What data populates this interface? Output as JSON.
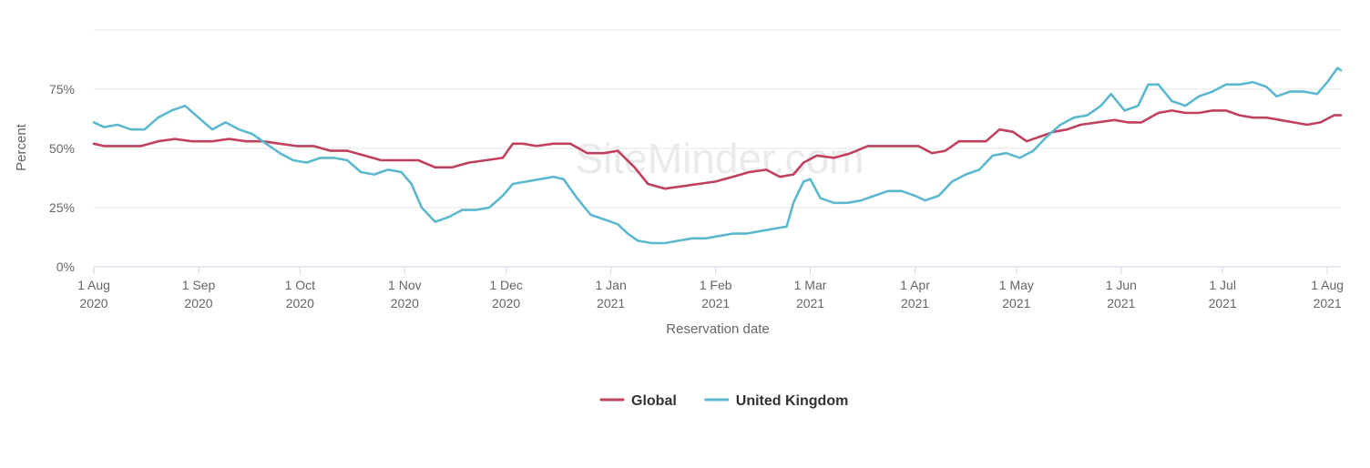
{
  "watermark": "SiteMinder.com",
  "chart_data": {
    "type": "line",
    "title": "",
    "xlabel": "Reservation date",
    "ylabel": "Percent",
    "ylim": [
      0,
      100
    ],
    "y_ticks": [
      {
        "value": 0,
        "label": "0%"
      },
      {
        "value": 25,
        "label": "25%"
      },
      {
        "value": 50,
        "label": "50%"
      },
      {
        "value": 75,
        "label": "75%"
      },
      {
        "value": 100,
        "label": ""
      }
    ],
    "xlim": [
      "2020-08-01",
      "2021-08-05"
    ],
    "x_ticks": [
      {
        "date": "2020-08-01",
        "line1": "1 Aug",
        "line2": "2020"
      },
      {
        "date": "2020-09-01",
        "line1": "1 Sep",
        "line2": "2020"
      },
      {
        "date": "2020-10-01",
        "line1": "1 Oct",
        "line2": "2020"
      },
      {
        "date": "2020-11-01",
        "line1": "1 Nov",
        "line2": "2020"
      },
      {
        "date": "2020-12-01",
        "line1": "1 Dec",
        "line2": "2020"
      },
      {
        "date": "2021-01-01",
        "line1": "1 Jan",
        "line2": "2021"
      },
      {
        "date": "2021-02-01",
        "line1": "1 Feb",
        "line2": "2021"
      },
      {
        "date": "2021-03-01",
        "line1": "1 Mar",
        "line2": "2021"
      },
      {
        "date": "2021-04-01",
        "line1": "1 Apr",
        "line2": "2021"
      },
      {
        "date": "2021-05-01",
        "line1": "1 May",
        "line2": "2021"
      },
      {
        "date": "2021-06-01",
        "line1": "1 Jun",
        "line2": "2021"
      },
      {
        "date": "2021-07-01",
        "line1": "1 Jul",
        "line2": "2021"
      },
      {
        "date": "2021-08-01",
        "line1": "1 Aug",
        "line2": "2021"
      }
    ],
    "grid": true,
    "legend_position": "bottom-center",
    "series": [
      {
        "name": "Global",
        "color": "#c0405e",
        "points": [
          [
            "2020-08-01",
            52
          ],
          [
            "2020-08-04",
            51
          ],
          [
            "2020-08-10",
            51
          ],
          [
            "2020-08-15",
            51
          ],
          [
            "2020-08-20",
            53
          ],
          [
            "2020-08-25",
            54
          ],
          [
            "2020-08-30",
            53
          ],
          [
            "2020-09-05",
            53
          ],
          [
            "2020-09-10",
            54
          ],
          [
            "2020-09-15",
            53
          ],
          [
            "2020-09-20",
            53
          ],
          [
            "2020-09-25",
            52
          ],
          [
            "2020-09-30",
            51
          ],
          [
            "2020-10-05",
            51
          ],
          [
            "2020-10-10",
            49
          ],
          [
            "2020-10-15",
            49
          ],
          [
            "2020-10-20",
            47
          ],
          [
            "2020-10-25",
            45
          ],
          [
            "2020-10-30",
            45
          ],
          [
            "2020-11-05",
            45
          ],
          [
            "2020-11-10",
            42
          ],
          [
            "2020-11-15",
            42
          ],
          [
            "2020-11-20",
            44
          ],
          [
            "2020-11-25",
            45
          ],
          [
            "2020-11-30",
            46
          ],
          [
            "2020-12-03",
            52
          ],
          [
            "2020-12-06",
            52
          ],
          [
            "2020-12-10",
            51
          ],
          [
            "2020-12-15",
            52
          ],
          [
            "2020-12-20",
            52
          ],
          [
            "2020-12-25",
            48
          ],
          [
            "2020-12-30",
            48
          ],
          [
            "2021-01-03",
            49
          ],
          [
            "2021-01-08",
            42
          ],
          [
            "2021-01-12",
            35
          ],
          [
            "2021-01-17",
            33
          ],
          [
            "2021-01-22",
            34
          ],
          [
            "2021-01-27",
            35
          ],
          [
            "2021-02-01",
            36
          ],
          [
            "2021-02-06",
            38
          ],
          [
            "2021-02-11",
            40
          ],
          [
            "2021-02-16",
            41
          ],
          [
            "2021-02-20",
            38
          ],
          [
            "2021-02-24",
            39
          ],
          [
            "2021-02-27",
            44
          ],
          [
            "2021-03-03",
            47
          ],
          [
            "2021-03-08",
            46
          ],
          [
            "2021-03-13",
            48
          ],
          [
            "2021-03-18",
            51
          ],
          [
            "2021-03-23",
            51
          ],
          [
            "2021-03-28",
            51
          ],
          [
            "2021-04-02",
            51
          ],
          [
            "2021-04-06",
            48
          ],
          [
            "2021-04-10",
            49
          ],
          [
            "2021-04-14",
            53
          ],
          [
            "2021-04-18",
            53
          ],
          [
            "2021-04-22",
            53
          ],
          [
            "2021-04-26",
            58
          ],
          [
            "2021-04-30",
            57
          ],
          [
            "2021-05-04",
            53
          ],
          [
            "2021-05-08",
            55
          ],
          [
            "2021-05-12",
            57
          ],
          [
            "2021-05-16",
            58
          ],
          [
            "2021-05-20",
            60
          ],
          [
            "2021-05-25",
            61
          ],
          [
            "2021-05-30",
            62
          ],
          [
            "2021-06-03",
            61
          ],
          [
            "2021-06-07",
            61
          ],
          [
            "2021-06-12",
            65
          ],
          [
            "2021-06-16",
            66
          ],
          [
            "2021-06-20",
            65
          ],
          [
            "2021-06-24",
            65
          ],
          [
            "2021-06-28",
            66
          ],
          [
            "2021-07-02",
            66
          ],
          [
            "2021-07-06",
            64
          ],
          [
            "2021-07-10",
            63
          ],
          [
            "2021-07-14",
            63
          ],
          [
            "2021-07-18",
            62
          ],
          [
            "2021-07-22",
            61
          ],
          [
            "2021-07-26",
            60
          ],
          [
            "2021-07-30",
            61
          ],
          [
            "2021-08-03",
            64
          ],
          [
            "2021-08-05",
            64
          ]
        ]
      },
      {
        "name": "United Kingdom",
        "color": "#5bb8cf",
        "points": [
          [
            "2020-08-01",
            61
          ],
          [
            "2020-08-04",
            59
          ],
          [
            "2020-08-08",
            60
          ],
          [
            "2020-08-12",
            58
          ],
          [
            "2020-08-16",
            58
          ],
          [
            "2020-08-20",
            63
          ],
          [
            "2020-08-24",
            66
          ],
          [
            "2020-08-28",
            68
          ],
          [
            "2020-09-01",
            63
          ],
          [
            "2020-09-05",
            58
          ],
          [
            "2020-09-09",
            61
          ],
          [
            "2020-09-13",
            58
          ],
          [
            "2020-09-17",
            56
          ],
          [
            "2020-09-21",
            52
          ],
          [
            "2020-09-25",
            48
          ],
          [
            "2020-09-29",
            45
          ],
          [
            "2020-10-03",
            44
          ],
          [
            "2020-10-07",
            46
          ],
          [
            "2020-10-11",
            46
          ],
          [
            "2020-10-15",
            45
          ],
          [
            "2020-10-19",
            40
          ],
          [
            "2020-10-23",
            39
          ],
          [
            "2020-10-27",
            41
          ],
          [
            "2020-10-31",
            40
          ],
          [
            "2020-11-03",
            35
          ],
          [
            "2020-11-06",
            25
          ],
          [
            "2020-11-10",
            19
          ],
          [
            "2020-11-14",
            21
          ],
          [
            "2020-11-18",
            24
          ],
          [
            "2020-11-22",
            24
          ],
          [
            "2020-11-26",
            25
          ],
          [
            "2020-11-30",
            30
          ],
          [
            "2020-12-03",
            35
          ],
          [
            "2020-12-07",
            36
          ],
          [
            "2020-12-11",
            37
          ],
          [
            "2020-12-15",
            38
          ],
          [
            "2020-12-18",
            37
          ],
          [
            "2020-12-22",
            29
          ],
          [
            "2020-12-26",
            22
          ],
          [
            "2020-12-30",
            20
          ],
          [
            "2021-01-03",
            18
          ],
          [
            "2021-01-06",
            14
          ],
          [
            "2021-01-09",
            11
          ],
          [
            "2021-01-13",
            10
          ],
          [
            "2021-01-17",
            10
          ],
          [
            "2021-01-21",
            11
          ],
          [
            "2021-01-25",
            12
          ],
          [
            "2021-01-29",
            12
          ],
          [
            "2021-02-02",
            13
          ],
          [
            "2021-02-06",
            14
          ],
          [
            "2021-02-10",
            14
          ],
          [
            "2021-02-14",
            15
          ],
          [
            "2021-02-18",
            16
          ],
          [
            "2021-02-22",
            17
          ],
          [
            "2021-02-24",
            27
          ],
          [
            "2021-02-27",
            36
          ],
          [
            "2021-03-01",
            37
          ],
          [
            "2021-03-04",
            29
          ],
          [
            "2021-03-08",
            27
          ],
          [
            "2021-03-12",
            27
          ],
          [
            "2021-03-16",
            28
          ],
          [
            "2021-03-20",
            30
          ],
          [
            "2021-03-24",
            32
          ],
          [
            "2021-03-28",
            32
          ],
          [
            "2021-04-01",
            30
          ],
          [
            "2021-04-04",
            28
          ],
          [
            "2021-04-08",
            30
          ],
          [
            "2021-04-12",
            36
          ],
          [
            "2021-04-16",
            39
          ],
          [
            "2021-04-20",
            41
          ],
          [
            "2021-04-24",
            47
          ],
          [
            "2021-04-28",
            48
          ],
          [
            "2021-05-02",
            46
          ],
          [
            "2021-05-06",
            49
          ],
          [
            "2021-05-10",
            55
          ],
          [
            "2021-05-14",
            60
          ],
          [
            "2021-05-18",
            63
          ],
          [
            "2021-05-22",
            64
          ],
          [
            "2021-05-26",
            68
          ],
          [
            "2021-05-29",
            73
          ],
          [
            "2021-06-02",
            66
          ],
          [
            "2021-06-06",
            68
          ],
          [
            "2021-06-09",
            77
          ],
          [
            "2021-06-12",
            77
          ],
          [
            "2021-06-16",
            70
          ],
          [
            "2021-06-20",
            68
          ],
          [
            "2021-06-24",
            72
          ],
          [
            "2021-06-28",
            74
          ],
          [
            "2021-07-02",
            77
          ],
          [
            "2021-07-06",
            77
          ],
          [
            "2021-07-10",
            78
          ],
          [
            "2021-07-14",
            76
          ],
          [
            "2021-07-17",
            72
          ],
          [
            "2021-07-21",
            74
          ],
          [
            "2021-07-25",
            74
          ],
          [
            "2021-07-29",
            73
          ],
          [
            "2021-08-01",
            78
          ],
          [
            "2021-08-04",
            84
          ],
          [
            "2021-08-05",
            83
          ]
        ]
      }
    ]
  }
}
